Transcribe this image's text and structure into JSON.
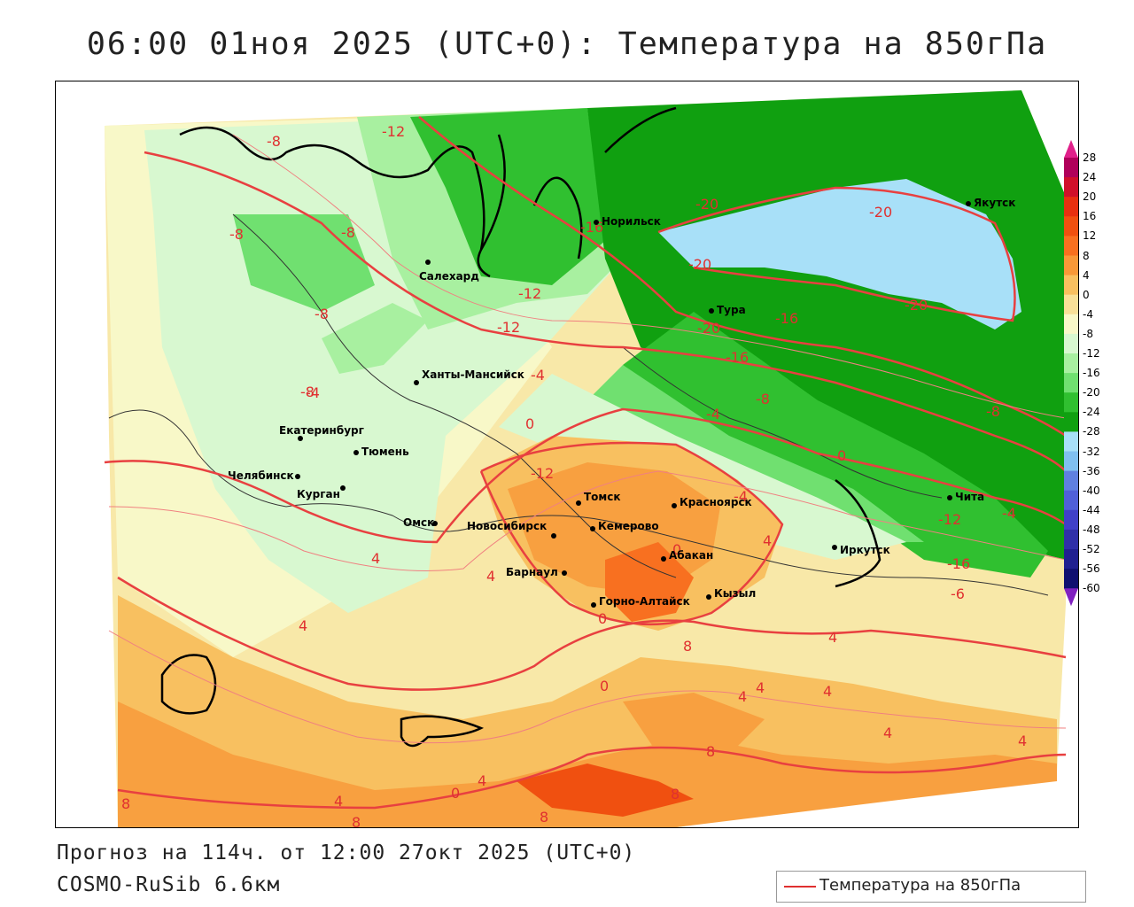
{
  "title": "06:00 01ноя 2025 (UTC+0): Температура на 850гПа",
  "footer": {
    "forecast": "Прогноз на 114ч. от 12:00 27окт 2025 (UTC+0)",
    "model": "COSMO-RuSib 6.6км"
  },
  "legend": {
    "label": "Температура на 850гПа",
    "line_color": "#e03030"
  },
  "colorbar": {
    "ticks": [
      "28",
      "24",
      "20",
      "16",
      "12",
      "8",
      "4",
      "0",
      "-4",
      "-8",
      "-12",
      "-16",
      "-20",
      "-24",
      "-28",
      "-32",
      "-36",
      "-40",
      "-44",
      "-48",
      "-52",
      "-56",
      "-60"
    ],
    "colors": [
      "#b0005a",
      "#d0102a",
      "#e83010",
      "#f05010",
      "#f87020",
      "#f89838",
      "#f8c060",
      "#f8e098",
      "#f8f8c8",
      "#d8f8d0",
      "#a8f0a0",
      "#70e070",
      "#30c030",
      "#10a010",
      "#a8e0f8",
      "#80c0f0",
      "#6080e0",
      "#5060d8",
      "#4040c8",
      "#3030a8",
      "#202090",
      "#101070"
    ]
  },
  "cities": [
    {
      "name": "Салехард"
    },
    {
      "name": "Норильск"
    },
    {
      "name": "Якутск"
    },
    {
      "name": "Тура"
    },
    {
      "name": "Ханты-Мансийск"
    },
    {
      "name": "Екатеринбург"
    },
    {
      "name": "Тюмень"
    },
    {
      "name": "Челябинск"
    },
    {
      "name": "Курган"
    },
    {
      "name": "Омск"
    },
    {
      "name": "Новосибирск"
    },
    {
      "name": "Томск"
    },
    {
      "name": "Кемерово"
    },
    {
      "name": "Красноярск"
    },
    {
      "name": "Барнаул"
    },
    {
      "name": "Абакан"
    },
    {
      "name": "Горно-Алтайск"
    },
    {
      "name": "Кызыл"
    },
    {
      "name": "Иркутск"
    },
    {
      "name": "Чита"
    }
  ],
  "isolines": [
    "-8",
    "-12",
    "-8",
    "-8",
    "-8",
    "-8",
    "-20",
    "-16",
    "-20",
    "-20",
    "-20",
    "-12",
    "-16",
    "-20",
    "-12",
    "-8",
    "-16",
    "-8",
    "-4",
    "0",
    "-4",
    "0",
    "-4",
    "-12",
    "-16",
    "-6",
    "-12",
    "-4",
    "0",
    "4",
    "4",
    "4",
    "4",
    "0",
    "8",
    "4",
    "0",
    "4",
    "4",
    "4",
    "4",
    "4",
    "8",
    "8",
    "4",
    "0",
    "4",
    "8",
    "8",
    "-4",
    "8"
  ]
}
